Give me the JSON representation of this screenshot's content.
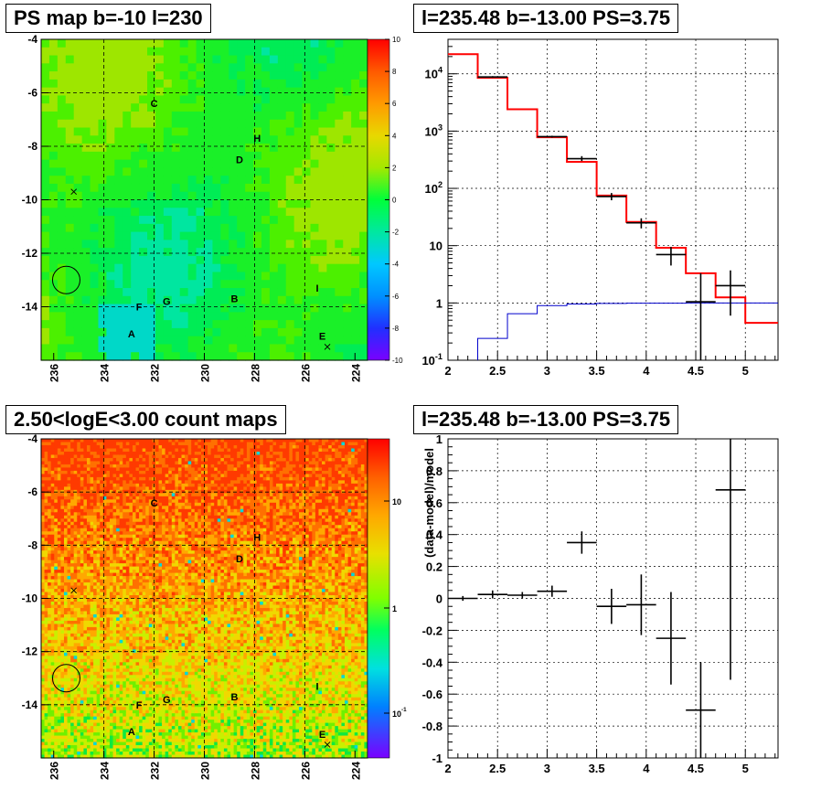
{
  "panels": {
    "tl_title": "PS map b=-10 l=230",
    "tr_title": "l=235.48 b=-13.00 PS=3.75",
    "bl_title": "2.50<logE<3.00 count maps",
    "br_title": "l=235.48 b=-13.00 PS=3.75"
  },
  "chart_data": [
    {
      "type": "heatmap",
      "title": "PS map b=-10 l=230",
      "x_range": [
        236.5,
        223.5
      ],
      "y_range": [
        -16,
        -4
      ],
      "x_ticks": [
        "236",
        "234",
        "232",
        "230",
        "228",
        "226",
        "224"
      ],
      "y_ticks": [
        "-4",
        "-6",
        "-8",
        "-10",
        "-12",
        "-14"
      ],
      "colorbar": {
        "min": -10,
        "max": 10,
        "ticks": [
          "10",
          "8",
          "6",
          "4",
          "2",
          "0",
          "-2",
          "-4",
          "-6",
          "-8",
          "-10"
        ]
      },
      "sources": [
        {
          "label": "A",
          "l": 232.9,
          "b": -15.0
        },
        {
          "label": "B",
          "l": 228.8,
          "b": -13.7
        },
        {
          "label": "C",
          "l": 232.0,
          "b": -6.4
        },
        {
          "label": "D",
          "l": 228.6,
          "b": -8.5
        },
        {
          "label": "E",
          "l": 225.3,
          "b": -15.1
        },
        {
          "label": "F",
          "l": 232.6,
          "b": -14.0
        },
        {
          "label": "G",
          "l": 231.5,
          "b": -13.8
        },
        {
          "label": "H",
          "l": 227.9,
          "b": -7.7
        },
        {
          "label": "I",
          "l": 225.5,
          "b": -13.3
        }
      ],
      "crosses": [
        {
          "l": 235.2,
          "b": -9.7
        },
        {
          "l": 225.1,
          "b": -15.5
        }
      ],
      "circle": {
        "l": 235.5,
        "b": -13.0
      }
    },
    {
      "type": "line",
      "title": "l=235.48 b=-13.00 PS=3.75",
      "x_range": [
        2,
        5.33
      ],
      "y_range_log": [
        0.1,
        40000
      ],
      "x_ticks": [
        "2",
        "2.5",
        "3",
        "3.5",
        "4",
        "4.5",
        "5"
      ],
      "y_ticks": [
        {
          "label": "10",
          "sup": "4",
          "value": 10000
        },
        {
          "label": "10",
          "sup": "3",
          "value": 1000
        },
        {
          "label": "10",
          "sup": "2",
          "value": 100
        },
        {
          "label": "10",
          "sup": "",
          "value": 10
        },
        {
          "label": "1",
          "sup": "",
          "value": 1
        },
        {
          "label": "10",
          "sup": "-1",
          "value": 0.1
        }
      ],
      "series": [
        {
          "color": "#ff0000",
          "kind": "step",
          "edges": [
            2,
            2.3,
            2.6,
            2.9,
            3.2,
            3.5,
            3.8,
            4.1,
            4.4,
            4.7,
            5.0,
            5.33
          ],
          "values": [
            22000,
            8500,
            2400,
            780,
            290,
            75,
            26,
            9.2,
            3.3,
            1.25,
            0.45
          ]
        },
        {
          "color": "#0000cc",
          "kind": "step",
          "edges": [
            2.3,
            2.6,
            2.9,
            3.2,
            3.5,
            3.8,
            4.1,
            4.4,
            4.7,
            5.0,
            5.33
          ],
          "values": [
            0.24,
            0.65,
            0.9,
            0.96,
            0.98,
            0.99,
            0.99,
            1.0,
            1.0,
            1.0
          ]
        },
        {
          "color": "#000000",
          "kind": "errorbar",
          "points": [
            {
              "x": 2.45,
              "xerr": 0.15,
              "y": 8800,
              "lo": 8500,
              "hi": 9100
            },
            {
              "x": 3.05,
              "xerr": 0.15,
              "y": 800,
              "lo": 770,
              "hi": 830
            },
            {
              "x": 3.35,
              "xerr": 0.15,
              "y": 330,
              "lo": 300,
              "hi": 365
            },
            {
              "x": 3.65,
              "xerr": 0.15,
              "y": 72,
              "lo": 62,
              "hi": 83
            },
            {
              "x": 3.95,
              "xerr": 0.15,
              "y": 25,
              "lo": 20,
              "hi": 30
            },
            {
              "x": 4.25,
              "xerr": 0.15,
              "y": 7,
              "lo": 4.5,
              "hi": 9.5
            },
            {
              "x": 4.55,
              "xerr": 0.15,
              "y": 1.05,
              "lo": 0.1,
              "hi": 3.3
            },
            {
              "x": 4.85,
              "xerr": 0.15,
              "y": 2.0,
              "lo": 0.6,
              "hi": 3.7
            }
          ]
        }
      ]
    },
    {
      "type": "heatmap",
      "title": "2.50<logE<3.00 count maps",
      "x_range": [
        236.5,
        223.5
      ],
      "y_range": [
        -16,
        -4
      ],
      "x_ticks": [
        "236",
        "234",
        "232",
        "230",
        "228",
        "226",
        "224"
      ],
      "y_ticks": [
        "-4",
        "-6",
        "-8",
        "-10",
        "-12",
        "-14"
      ],
      "colorbar": {
        "scale": "log",
        "ticks": [
          {
            "label": "10",
            "sup": ""
          },
          {
            "label": "1",
            "sup": ""
          },
          {
            "label": "10",
            "sup": "-1"
          }
        ]
      }
    },
    {
      "type": "scatter",
      "title": "l=235.48 b=-13.00 PS=3.75",
      "ylabel": "(data-model)/model",
      "x_range": [
        2,
        5.33
      ],
      "y_range": [
        -1,
        1
      ],
      "x_ticks": [
        "2",
        "2.5",
        "3",
        "3.5",
        "4",
        "4.5",
        "5"
      ],
      "y_ticks": [
        "1",
        "0.8",
        "0.6",
        "0.4",
        "0.2",
        "0",
        "-0.2",
        "-0.4",
        "-0.6",
        "-0.8",
        "-1"
      ],
      "points": [
        {
          "x": 2.15,
          "xerr": 0.15,
          "y": 0.0,
          "lo": -0.015,
          "hi": 0.015
        },
        {
          "x": 2.45,
          "xerr": 0.15,
          "y": 0.025,
          "lo": 0.0,
          "hi": 0.05
        },
        {
          "x": 2.75,
          "xerr": 0.15,
          "y": 0.02,
          "lo": 0.0,
          "hi": 0.04
        },
        {
          "x": 3.05,
          "xerr": 0.15,
          "y": 0.045,
          "lo": 0.01,
          "hi": 0.08
        },
        {
          "x": 3.35,
          "xerr": 0.15,
          "y": 0.35,
          "lo": 0.28,
          "hi": 0.42
        },
        {
          "x": 3.65,
          "xerr": 0.15,
          "y": -0.05,
          "lo": -0.16,
          "hi": 0.06
        },
        {
          "x": 3.95,
          "xerr": 0.15,
          "y": -0.04,
          "lo": -0.23,
          "hi": 0.15
        },
        {
          "x": 4.25,
          "xerr": 0.15,
          "y": -0.25,
          "lo": -0.54,
          "hi": 0.04
        },
        {
          "x": 4.55,
          "xerr": 0.15,
          "y": -0.7,
          "lo": -1.0,
          "hi": -0.4
        },
        {
          "x": 4.85,
          "xerr": 0.15,
          "y": 0.68,
          "lo": -0.51,
          "hi": 1.0
        }
      ]
    }
  ]
}
